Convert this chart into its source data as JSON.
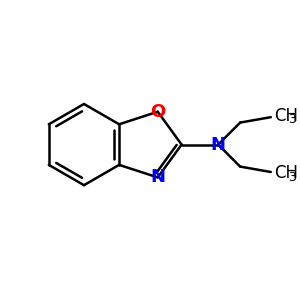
{
  "bg_color": "#ffffff",
  "bond_color": "#000000",
  "O_color": "#ff0000",
  "N_color": "#0000ff",
  "line_width": 1.8,
  "font_size_atom": 13,
  "font_size_sub": 9,
  "font_size_ch": 12,
  "figsize": [
    3.0,
    3.0
  ],
  "dpi": 100,
  "xlim": [
    0,
    10
  ],
  "ylim": [
    0,
    10
  ]
}
